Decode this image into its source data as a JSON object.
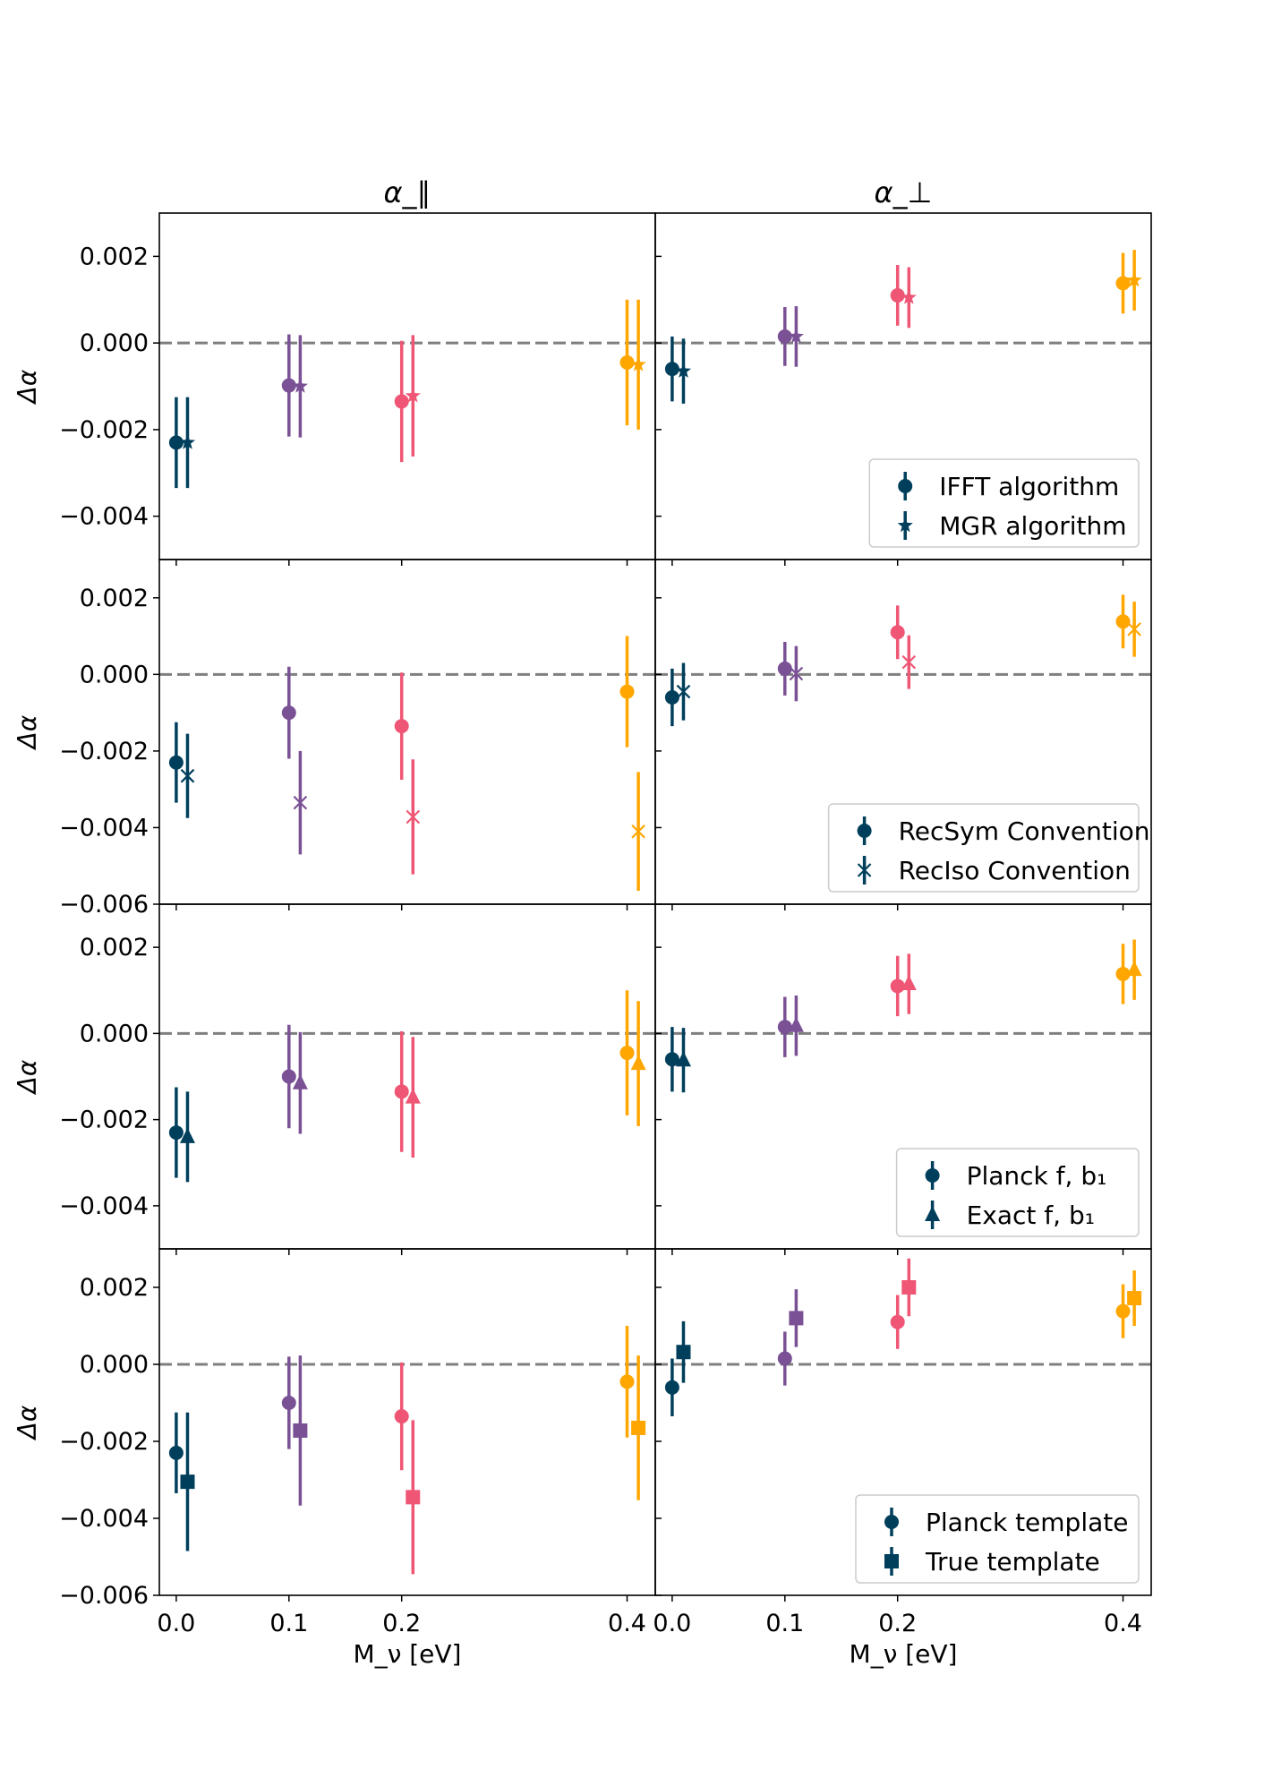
{
  "figure": {
    "column_titles": [
      "α_∥",
      "α_⊥"
    ],
    "ylabel": "Δα",
    "xlabel": "M_ν [eV]"
  },
  "colors": {
    "m0.0": "#003f5c",
    "m0.1": "#7a5195",
    "m0.2": "#ef5675",
    "m0.4": "#ffa600",
    "zero_line": "#7f7f7f"
  },
  "chart_data": [
    {
      "type": "scatter",
      "row": 0,
      "col": 0,
      "title": "α_∥",
      "xlabel": "",
      "ylabel": "Δα",
      "ylim": [
        -0.005,
        0.003
      ],
      "yticks": [
        0.002,
        0.0,
        -0.002,
        -0.004
      ],
      "ytick_labels": [
        "0.002",
        "0.000",
        "−0.002",
        "−0.004"
      ],
      "categories": [
        "0.0",
        "0.1",
        "0.2",
        "0.4"
      ],
      "series": [
        {
          "name": "IFFT algorithm",
          "marker": "circle",
          "values": [
            -0.0023,
            -0.00098,
            -0.00135,
            -0.00045
          ],
          "errors": [
            0.00105,
            0.00118,
            0.0014,
            0.00145
          ]
        },
        {
          "name": "MGR algorithm",
          "marker": "star",
          "values": [
            -0.0023,
            -0.001,
            -0.00122,
            -0.0005
          ],
          "errors": [
            0.00105,
            0.00118,
            0.0014,
            0.0015
          ]
        }
      ],
      "legend": null
    },
    {
      "type": "scatter",
      "row": 0,
      "col": 1,
      "title": "α_⊥",
      "xlabel": "",
      "ylabel": "",
      "ylim": [
        -0.005,
        0.003
      ],
      "yticks": [
        0.002,
        0.0,
        -0.002,
        -0.004
      ],
      "categories": [
        "0.0",
        "0.1",
        "0.2",
        "0.4"
      ],
      "series": [
        {
          "name": "IFFT algorithm",
          "marker": "circle",
          "values": [
            -0.0006,
            0.00015,
            0.0011,
            0.00138
          ],
          "errors": [
            0.00075,
            0.00068,
            0.0007,
            0.0007
          ]
        },
        {
          "name": "MGR algorithm",
          "marker": "star",
          "values": [
            -0.00065,
            0.00015,
            0.00105,
            0.00145
          ],
          "errors": [
            0.00075,
            0.0007,
            0.0007,
            0.0007
          ]
        }
      ],
      "legend": {
        "position": "lower-right",
        "entries": [
          "IFFT algorithm",
          "MGR algorithm"
        ]
      }
    },
    {
      "type": "scatter",
      "row": 1,
      "col": 0,
      "title": "",
      "xlabel": "",
      "ylabel": "Δα",
      "ylim": [
        -0.006,
        0.003
      ],
      "yticks": [
        0.002,
        0.0,
        -0.002,
        -0.004,
        -0.006
      ],
      "ytick_labels": [
        "0.002",
        "0.000",
        "−0.002",
        "−0.004",
        "−0.006"
      ],
      "categories": [
        "0.0",
        "0.1",
        "0.2",
        "0.4"
      ],
      "series": [
        {
          "name": "RecSym Convention",
          "marker": "circle",
          "values": [
            -0.0023,
            -0.001,
            -0.00135,
            -0.00045
          ],
          "errors": [
            0.00105,
            0.0012,
            0.0014,
            0.00145
          ]
        },
        {
          "name": "RecIso Convention",
          "marker": "x",
          "values": [
            -0.00265,
            -0.00335,
            -0.00372,
            -0.0041
          ],
          "errors": [
            0.0011,
            0.00135,
            0.0015,
            0.00155
          ]
        }
      ],
      "legend": null
    },
    {
      "type": "scatter",
      "row": 1,
      "col": 1,
      "title": "",
      "xlabel": "",
      "ylabel": "",
      "ylim": [
        -0.006,
        0.003
      ],
      "yticks": [
        0.002,
        0.0,
        -0.002,
        -0.004,
        -0.006
      ],
      "categories": [
        "0.0",
        "0.1",
        "0.2",
        "0.4"
      ],
      "series": [
        {
          "name": "RecSym Convention",
          "marker": "circle",
          "values": [
            -0.0006,
            0.00015,
            0.0011,
            0.00138
          ],
          "errors": [
            0.00075,
            0.0007,
            0.0007,
            0.0007
          ]
        },
        {
          "name": "RecIso Convention",
          "marker": "x",
          "values": [
            -0.00045,
            2e-05,
            0.00032,
            0.00118
          ],
          "errors": [
            0.00075,
            0.00072,
            0.0007,
            0.00072
          ]
        }
      ],
      "legend": {
        "position": "lower-right",
        "entries": [
          "RecSym Convention",
          "RecIso Convention"
        ]
      }
    },
    {
      "type": "scatter",
      "row": 2,
      "col": 0,
      "title": "",
      "xlabel": "",
      "ylabel": "Δα",
      "ylim": [
        -0.005,
        0.003
      ],
      "yticks": [
        0.002,
        0.0,
        -0.002,
        -0.004
      ],
      "ytick_labels": [
        "0.002",
        "0.000",
        "−0.002",
        "−0.004"
      ],
      "categories": [
        "0.0",
        "0.1",
        "0.2",
        "0.4"
      ],
      "series": [
        {
          "name": "Planck f, b₁",
          "marker": "circle",
          "values": [
            -0.0023,
            -0.001,
            -0.00135,
            -0.00045
          ],
          "errors": [
            0.00105,
            0.0012,
            0.0014,
            0.00145
          ]
        },
        {
          "name": "Exact f, b₁",
          "marker": "triangle",
          "values": [
            -0.0024,
            -0.00115,
            -0.00148,
            -0.0007
          ],
          "errors": [
            0.00105,
            0.00118,
            0.0014,
            0.00145
          ]
        }
      ],
      "legend": null
    },
    {
      "type": "scatter",
      "row": 2,
      "col": 1,
      "title": "",
      "xlabel": "",
      "ylabel": "",
      "ylim": [
        -0.005,
        0.003
      ],
      "yticks": [
        0.002,
        0.0,
        -0.002,
        -0.004
      ],
      "categories": [
        "0.0",
        "0.1",
        "0.2",
        "0.4"
      ],
      "series": [
        {
          "name": "Planck f, b₁",
          "marker": "circle",
          "values": [
            -0.0006,
            0.00015,
            0.0011,
            0.00138
          ],
          "errors": [
            0.00075,
            0.0007,
            0.0007,
            0.0007
          ]
        },
        {
          "name": "Exact f, b₁",
          "marker": "triangle",
          "values": [
            -0.00062,
            0.00018,
            0.00115,
            0.00148
          ],
          "errors": [
            0.00075,
            0.0007,
            0.0007,
            0.0007
          ]
        }
      ],
      "legend": {
        "position": "lower-right",
        "entries": [
          "Planck f, b₁",
          "Exact f, b₁"
        ]
      }
    },
    {
      "type": "scatter",
      "row": 3,
      "col": 0,
      "title": "",
      "xlabel": "M_ν [eV]",
      "ylabel": "Δα",
      "ylim": [
        -0.006,
        0.003
      ],
      "yticks": [
        0.002,
        0.0,
        -0.002,
        -0.004,
        -0.006
      ],
      "ytick_labels": [
        "0.002",
        "0.000",
        "−0.002",
        "−0.004",
        "−0.006"
      ],
      "categories": [
        "0.0",
        "0.1",
        "0.2",
        "0.4"
      ],
      "series": [
        {
          "name": "Planck template",
          "marker": "circle",
          "values": [
            -0.0023,
            -0.001,
            -0.00135,
            -0.00045
          ],
          "errors": [
            0.00105,
            0.0012,
            0.0014,
            0.00145
          ]
        },
        {
          "name": "True template",
          "marker": "square",
          "values": [
            -0.00305,
            -0.00172,
            -0.00345,
            -0.00165
          ],
          "errors": [
            0.0018,
            0.00195,
            0.002,
            0.00188
          ]
        }
      ],
      "legend": null
    },
    {
      "type": "scatter",
      "row": 3,
      "col": 1,
      "title": "",
      "xlabel": "M_ν [eV]",
      "ylabel": "",
      "ylim": [
        -0.006,
        0.003
      ],
      "yticks": [
        0.002,
        0.0,
        -0.002,
        -0.004,
        -0.006
      ],
      "categories": [
        "0.0",
        "0.1",
        "0.2",
        "0.4"
      ],
      "series": [
        {
          "name": "Planck template",
          "marker": "circle",
          "values": [
            -0.0006,
            0.00015,
            0.0011,
            0.00138
          ],
          "errors": [
            0.00075,
            0.0007,
            0.0007,
            0.0007
          ]
        },
        {
          "name": "True template",
          "marker": "square",
          "values": [
            0.00032,
            0.0012,
            0.002,
            0.00172
          ],
          "errors": [
            0.0008,
            0.00075,
            0.00075,
            0.00072
          ]
        }
      ],
      "legend": {
        "position": "lower-right",
        "entries": [
          "Planck template",
          "True template"
        ]
      }
    }
  ]
}
